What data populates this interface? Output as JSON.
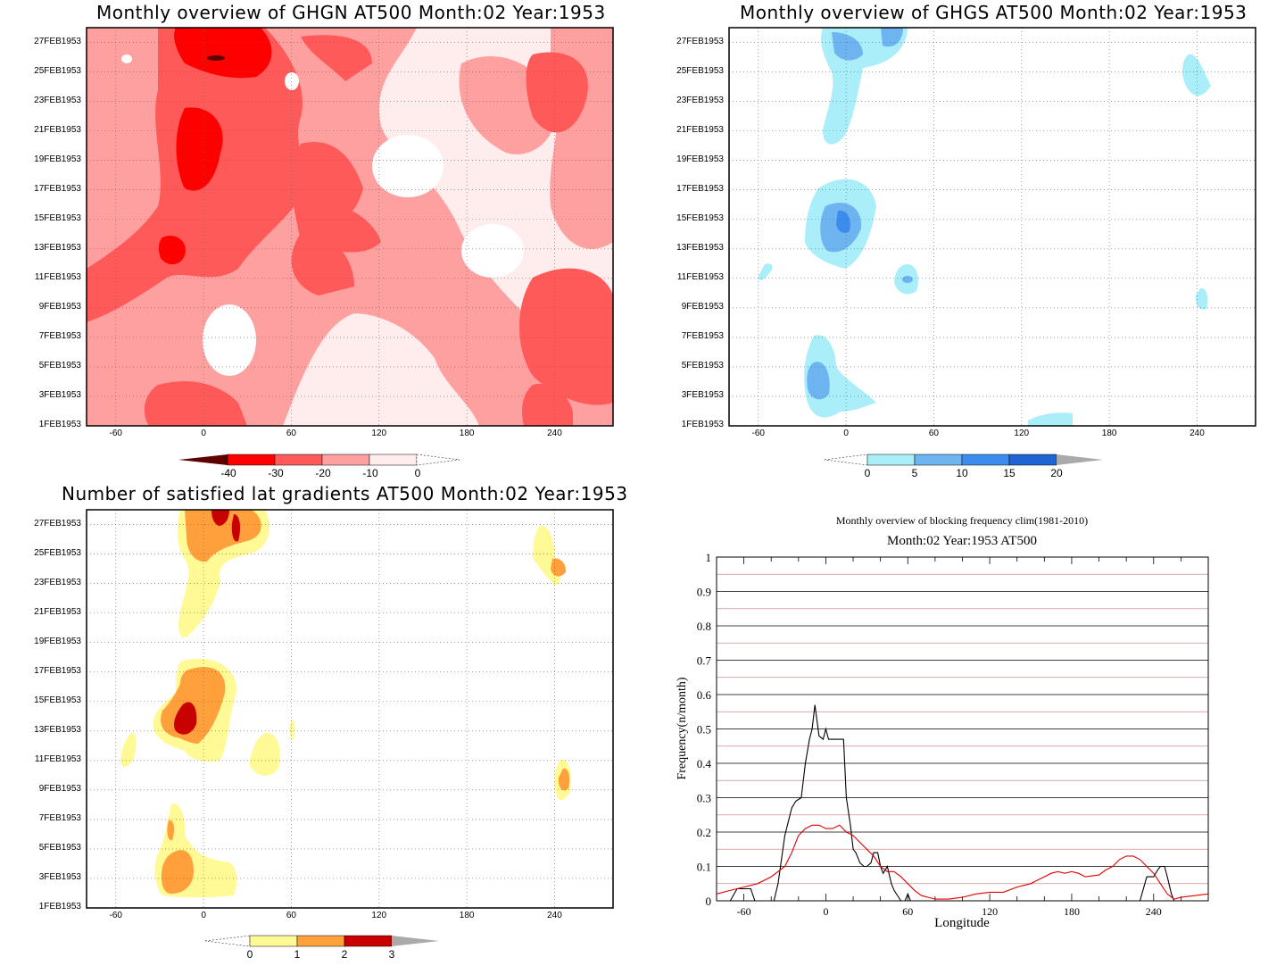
{
  "panels": {
    "ghgn": {
      "title": "Monthly overview of GHGN AT500 Month:02 Year:1953",
      "colorbar": [
        "-40",
        "-30",
        "-20",
        "-10",
        "0"
      ],
      "colors": [
        "#5c0000",
        "#ff0000",
        "#ff5a5a",
        "#ffa0a0",
        "#ffecec"
      ]
    },
    "ghgs": {
      "title": "Monthly overview of GHGS AT500 Month:02 Year:1953",
      "colorbar": [
        "0",
        "5",
        "10",
        "15",
        "20"
      ],
      "colors": [
        "#aaeefa",
        "#6eb4f0",
        "#3c8cf0",
        "#1e64d2",
        "#aaaaaa"
      ]
    },
    "lat": {
      "title": "Number of satisfied lat gradients AT500 Month:02 Year:1953",
      "colorbar": [
        "0",
        "1",
        "2",
        "3"
      ],
      "colors": [
        "#fffa96",
        "#ffa03c",
        "#c80000",
        "#aaaaaa"
      ]
    },
    "freq": {
      "title": "Monthly overview of blocking frequency clim(1981-2010)",
      "subtitle": "Month:02 Year:1953  AT500"
    }
  },
  "map_axes": {
    "x_ticks": [
      "-60",
      "0",
      "60",
      "120",
      "180",
      "240"
    ],
    "y_ticks": [
      "1FEB1953",
      "3FEB1953",
      "5FEB1953",
      "7FEB1953",
      "9FEB1953",
      "11FEB1953",
      "13FEB1953",
      "15FEB1953",
      "17FEB1953",
      "19FEB1953",
      "21FEB1953",
      "23FEB1953",
      "25FEB1953",
      "27FEB1953"
    ]
  },
  "chart_data": {
    "type": "line",
    "xlabel": "Longitude",
    "ylabel": "Frequency(n/month)",
    "xlim": [
      -80,
      280
    ],
    "ylim": [
      0,
      1
    ],
    "x_ticks": [
      "-60",
      "0",
      "60",
      "120",
      "180",
      "240"
    ],
    "y_ticks": [
      "0",
      "0.1",
      "0.2",
      "0.3",
      "0.4",
      "0.5",
      "0.6",
      "0.7",
      "0.8",
      "0.9",
      "1"
    ],
    "grid": true,
    "series": [
      {
        "color": "#000000",
        "x": [
          -80,
          -70,
          -65,
          -60,
          -55,
          -52,
          -45,
          -38,
          -35,
          -30,
          -25,
          -22,
          -18,
          -15,
          -12,
          -10,
          -8,
          -5,
          -2,
          0,
          2,
          5,
          8,
          10,
          13,
          15,
          18,
          20,
          22,
          25,
          28,
          30,
          33,
          35,
          38,
          40,
          42,
          45,
          48,
          50,
          55,
          58,
          60,
          62,
          65,
          70,
          100,
          150,
          200,
          220,
          225,
          228,
          230,
          235,
          240,
          243,
          245,
          248,
          250,
          253,
          255,
          260,
          270,
          280
        ],
        "y": [
          0,
          0,
          0.035,
          0.035,
          0.035,
          0,
          0,
          0,
          0.05,
          0.19,
          0.27,
          0.29,
          0.3,
          0.4,
          0.47,
          0.5,
          0.57,
          0.48,
          0.47,
          0.5,
          0.47,
          0.47,
          0.47,
          0.47,
          0.47,
          0.3,
          0.22,
          0.15,
          0.14,
          0.11,
          0.1,
          0.1,
          0.11,
          0.14,
          0.14,
          0.1,
          0.08,
          0.1,
          0.05,
          0.03,
          0,
          0,
          0.02,
          0,
          0,
          0,
          0,
          0,
          0,
          0,
          0,
          0,
          0,
          0.07,
          0.07,
          0.09,
          0.1,
          0.1,
          0.07,
          0.02,
          0,
          0,
          0,
          0
        ]
      },
      {
        "color": "#e10000",
        "x": [
          -80,
          -70,
          -60,
          -50,
          -40,
          -30,
          -25,
          -20,
          -15,
          -10,
          -5,
          0,
          5,
          10,
          15,
          20,
          25,
          30,
          35,
          40,
          45,
          50,
          55,
          60,
          65,
          70,
          75,
          80,
          90,
          100,
          110,
          120,
          130,
          140,
          150,
          155,
          160,
          165,
          170,
          175,
          180,
          185,
          190,
          200,
          205,
          210,
          215,
          220,
          225,
          230,
          235,
          240,
          245,
          250,
          255,
          260,
          270,
          280
        ],
        "y": [
          0.02,
          0.03,
          0.04,
          0.05,
          0.07,
          0.1,
          0.14,
          0.19,
          0.21,
          0.22,
          0.22,
          0.21,
          0.21,
          0.22,
          0.2,
          0.19,
          0.17,
          0.15,
          0.13,
          0.1,
          0.085,
          0.085,
          0.07,
          0.05,
          0.03,
          0.015,
          0.01,
          0.005,
          0.005,
          0.01,
          0.02,
          0.025,
          0.025,
          0.04,
          0.05,
          0.06,
          0.07,
          0.08,
          0.085,
          0.08,
          0.085,
          0.08,
          0.07,
          0.075,
          0.09,
          0.1,
          0.12,
          0.13,
          0.13,
          0.12,
          0.1,
          0.08,
          0.05,
          0.02,
          0.005,
          0.01,
          0.015,
          0.02
        ]
      }
    ]
  }
}
